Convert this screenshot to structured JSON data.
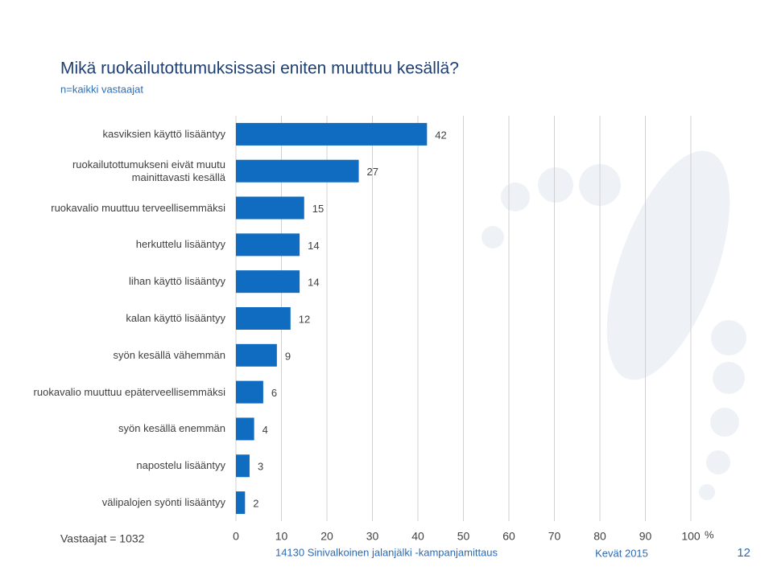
{
  "chart_data": {
    "type": "bar",
    "orientation": "horizontal",
    "title": "Mikä ruokailutottumuksissasi eniten muuttuu kesällä?",
    "subtitle": "n=kaikki vastaajat",
    "x_label": "%",
    "categories": [
      "kasviksien käyttö lisääntyy",
      "ruokailutottumukseni eivät muutu mainittavasti kesällä",
      "ruokavalio muuttuu terveellisemmäksi",
      "herkuttelu lisääntyy",
      "lihan käyttö lisääntyy",
      "kalan käyttö lisääntyy",
      "syön kesällä vähemmän",
      "ruokavalio muuttuu epäterveellisemmäksi",
      "syön kesällä enemmän",
      "napostelu lisääntyy",
      "välipalojen syönti lisääntyy"
    ],
    "values": [
      42,
      27,
      15,
      14,
      14,
      12,
      9,
      6,
      4,
      3,
      2
    ],
    "color": "#0f6cc0",
    "xlim": [
      0,
      100
    ],
    "xticks": [
      0,
      10,
      20,
      30,
      40,
      50,
      60,
      70,
      80,
      90,
      100
    ],
    "grid": true
  },
  "respondents": "Vastaajat = 1032",
  "footer": "14130 Sinivalkoinen jalanjälki -kampanjamittaus",
  "date": "Kevät 2015",
  "page_number": "12"
}
